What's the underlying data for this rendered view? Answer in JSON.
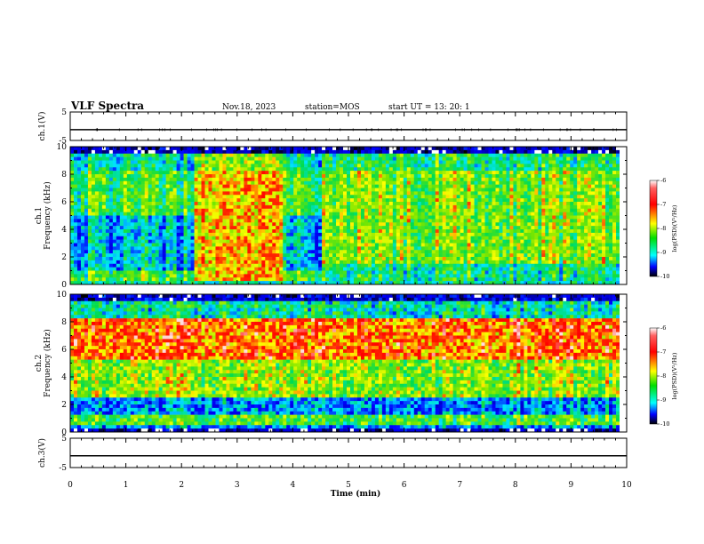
{
  "header": {
    "title": "VLF Spectra",
    "date": "Nov.18, 2023",
    "station": "station=MOS",
    "start": "start UT =  13: 20: 1"
  },
  "chart_data": [
    {
      "type": "line",
      "name": "ch1-voltage",
      "ylabel": "ch.1(V)",
      "ylim": [
        -5,
        5
      ],
      "yticks": [
        "5",
        "-5"
      ],
      "x": [
        0,
        10
      ],
      "y": [
        -1.2,
        -1.2
      ]
    },
    {
      "type": "heatmap",
      "name": "ch1-spectrogram",
      "ylabel": "ch.1\nFrequency (kHz)",
      "ylim": [
        0,
        10
      ],
      "yticks": [
        "0",
        "2",
        "4",
        "6",
        "8",
        "10"
      ],
      "colorbar": {
        "label": "log(PSD)(V²/Hz)",
        "range": [
          -10,
          -6
        ],
        "ticks": [
          "-6",
          "-7",
          "-8",
          "-9",
          "-10"
        ]
      }
    },
    {
      "type": "heatmap",
      "name": "ch2-spectrogram",
      "ylabel": "ch.2\nFrequency (kHz)",
      "ylim": [
        0,
        10
      ],
      "yticks": [
        "0",
        "2",
        "4",
        "6",
        "8",
        "10"
      ],
      "colorbar": {
        "label": "log(PSD)(V²/Hz)",
        "range": [
          -10,
          -6
        ],
        "ticks": [
          "-6",
          "-7",
          "-8",
          "-9",
          "-10"
        ]
      }
    },
    {
      "type": "line",
      "name": "ch3-voltage",
      "ylabel": "ch.3(V)",
      "ylim": [
        -5,
        5
      ],
      "yticks": [
        "5",
        "-5"
      ],
      "x": [
        0,
        10
      ],
      "y": [
        -1.0,
        -1.0
      ]
    }
  ],
  "xaxis": {
    "label": "Time (min)",
    "range": [
      0,
      10
    ],
    "ticks": [
      "0",
      "1",
      "2",
      "3",
      "4",
      "5",
      "6",
      "7",
      "8",
      "9",
      "10"
    ]
  }
}
